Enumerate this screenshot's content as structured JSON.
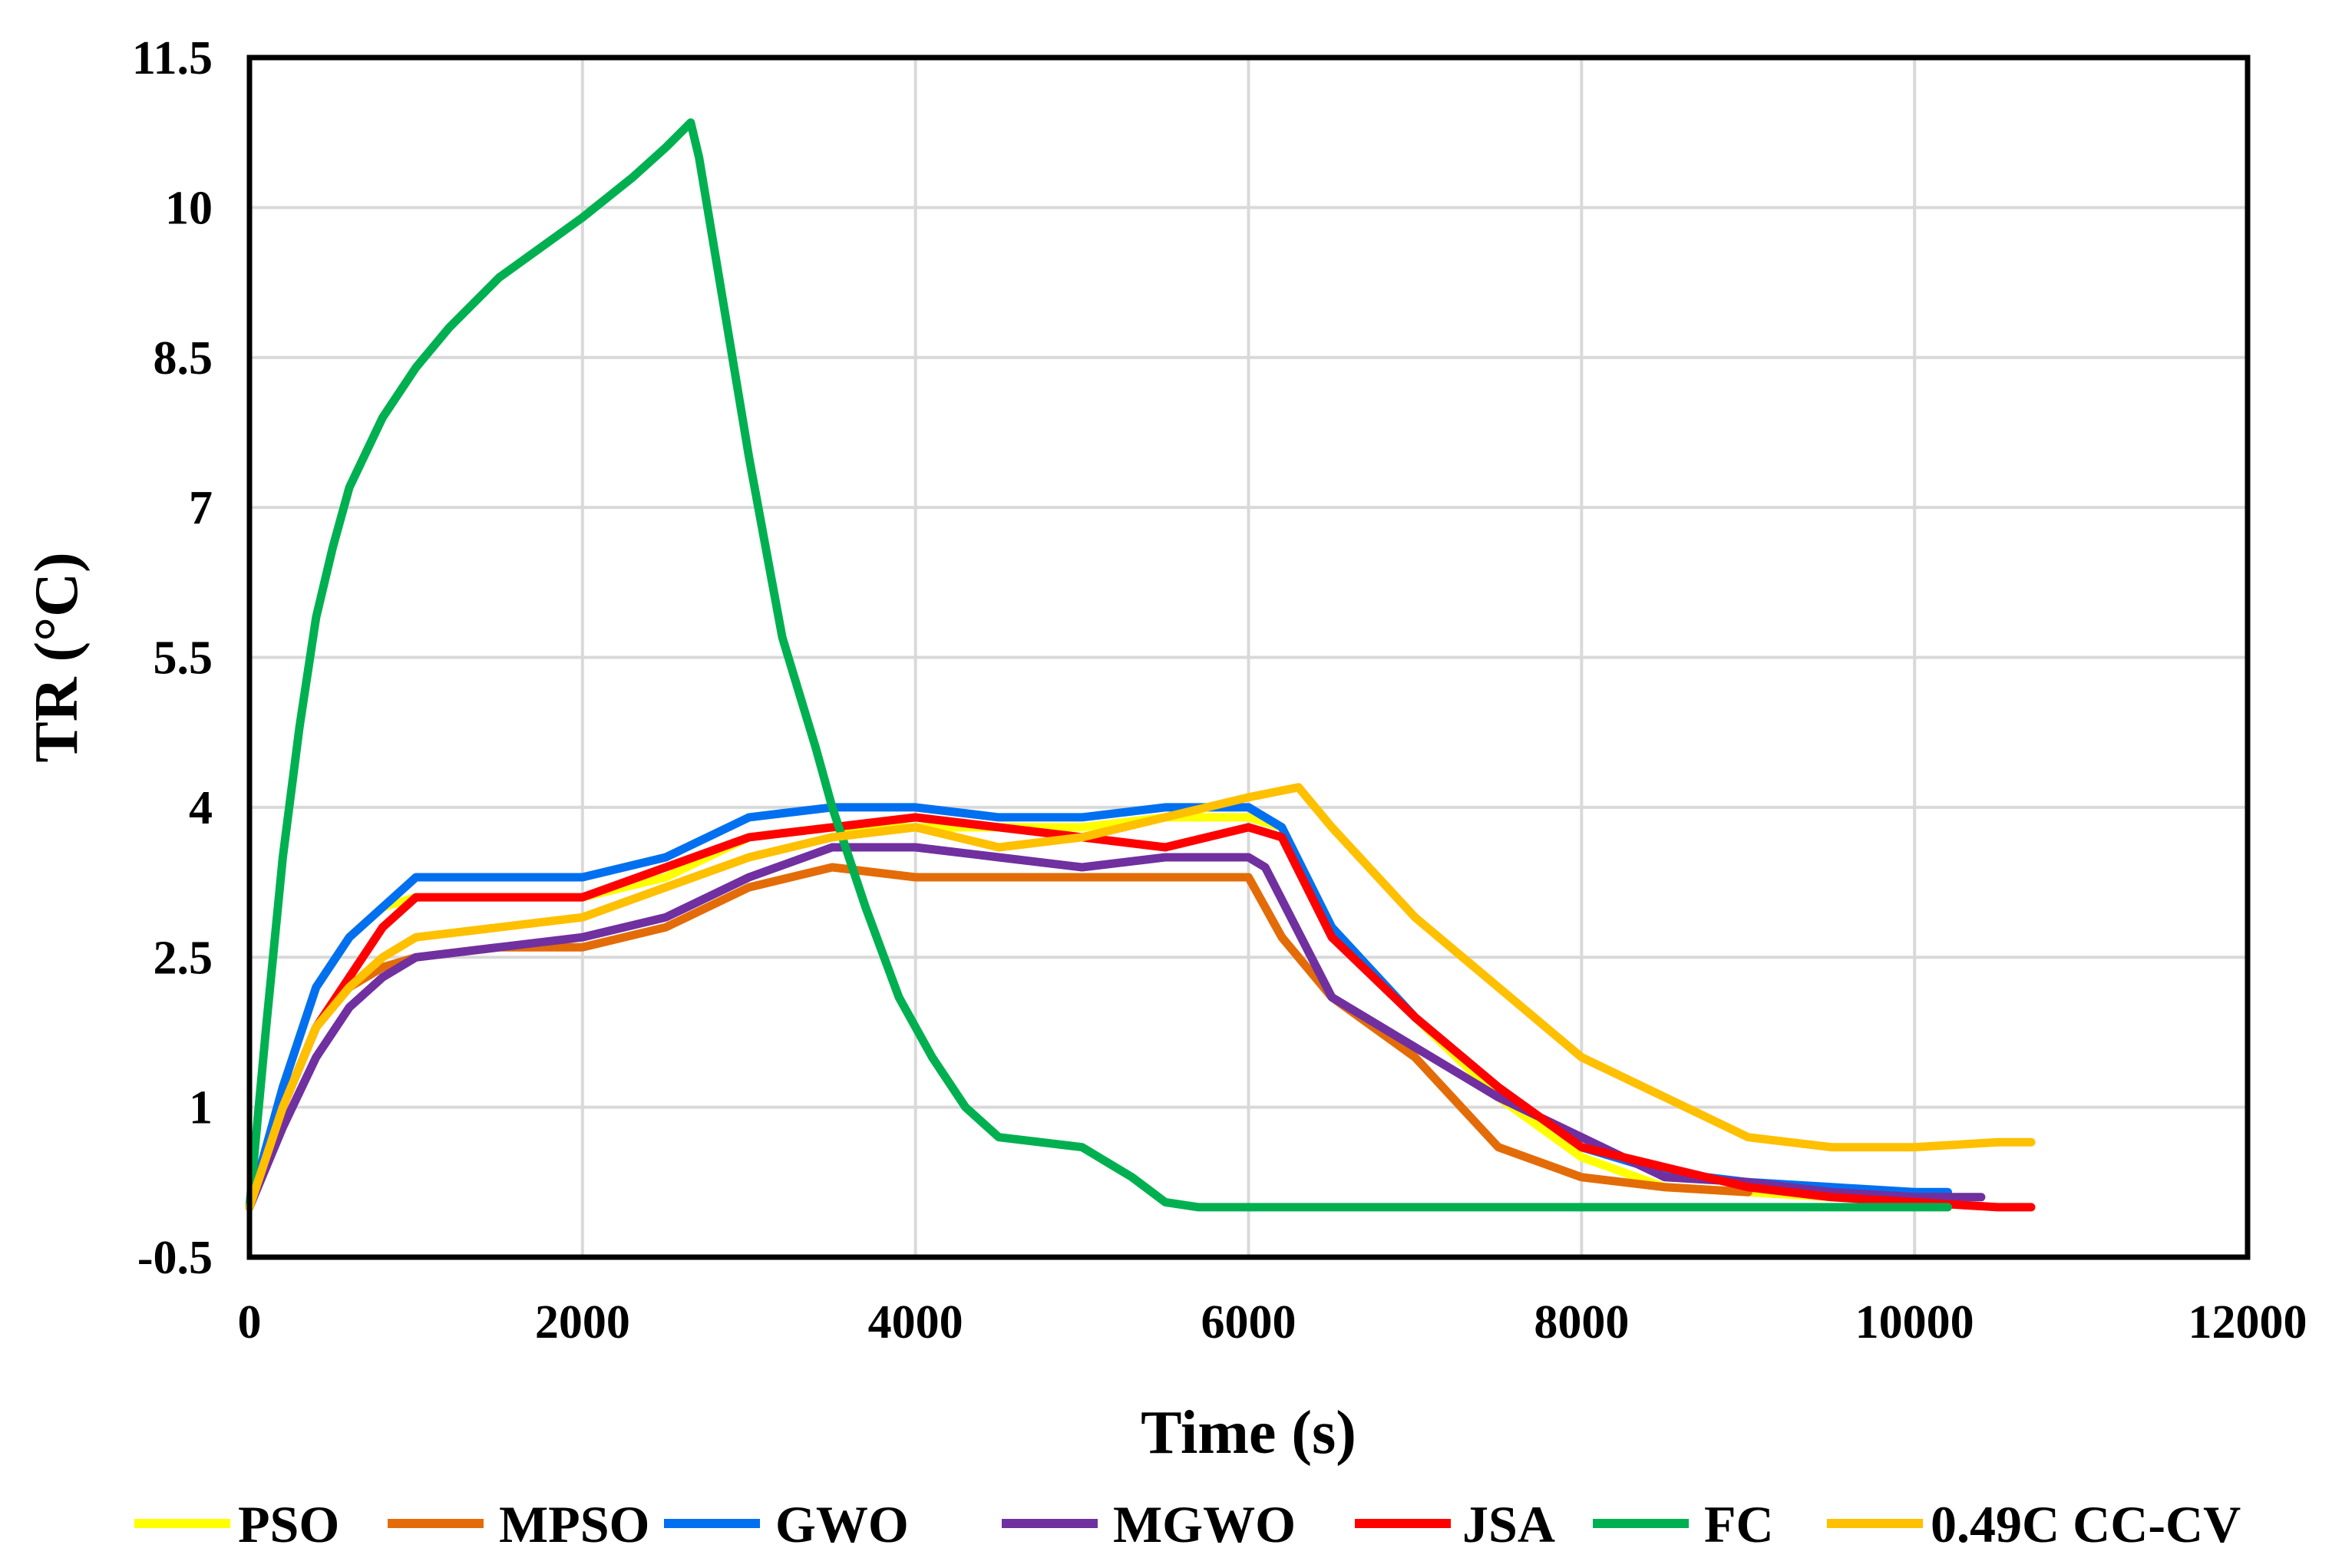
{
  "chart_data": {
    "type": "line",
    "title": "",
    "xlabel": "Time (s)",
    "ylabel": "TR (°C)",
    "xlim": [
      0,
      12000
    ],
    "ylim": [
      -0.5,
      11.5
    ],
    "xticks": [
      0,
      2000,
      4000,
      6000,
      8000,
      10000,
      12000
    ],
    "xtick_labels": [
      "0",
      "2000",
      "4000",
      "6000",
      "8000",
      "10000",
      "12000"
    ],
    "yticks": [
      -0.5,
      1,
      2.5,
      4,
      5.5,
      7,
      8.5,
      10,
      11.5
    ],
    "ytick_labels": [
      "-0.5",
      "1",
      "2.5",
      "4",
      "5.5",
      "7",
      "8.5",
      "10",
      "11.5"
    ],
    "grid": true,
    "legend_position": "bottom",
    "series": [
      {
        "name": "PSO",
        "color": "#ffff00",
        "x": [
          0,
          200,
          400,
          600,
          800,
          1000,
          1500,
          2000,
          2500,
          3000,
          3500,
          4000,
          4500,
          5000,
          5500,
          6000,
          6200,
          6500,
          7000,
          7500,
          8000,
          8500,
          9000,
          9500,
          10000
        ],
        "y": [
          0,
          1.2,
          2.2,
          2.7,
          3.0,
          3.1,
          3.1,
          3.1,
          3.3,
          3.7,
          3.8,
          3.8,
          3.8,
          3.8,
          3.9,
          3.9,
          3.8,
          2.8,
          1.9,
          1.1,
          0.5,
          0.2,
          0.15,
          0.1,
          0.1
        ]
      },
      {
        "name": "MPSO",
        "color": "#e36c09",
        "x": [
          0,
          200,
          400,
          600,
          800,
          1000,
          1500,
          2000,
          2500,
          3000,
          3500,
          4000,
          4500,
          5000,
          5500,
          6000,
          6200,
          6500,
          7000,
          7500,
          8000,
          8500,
          9000
        ],
        "y": [
          0,
          1.0,
          1.8,
          2.2,
          2.4,
          2.5,
          2.6,
          2.6,
          2.8,
          3.2,
          3.4,
          3.3,
          3.3,
          3.3,
          3.3,
          3.3,
          2.7,
          2.1,
          1.5,
          0.6,
          0.3,
          0.2,
          0.15
        ]
      },
      {
        "name": "GWO",
        "color": "#0070f0",
        "x": [
          0,
          200,
          400,
          600,
          800,
          1000,
          1500,
          2000,
          2500,
          3000,
          3500,
          4000,
          4500,
          5000,
          5500,
          6000,
          6200,
          6500,
          7000,
          7500,
          8000,
          8500,
          9000,
          9500,
          10000,
          10200
        ],
        "y": [
          0,
          1.2,
          2.2,
          2.7,
          3.0,
          3.3,
          3.3,
          3.3,
          3.5,
          3.9,
          4.0,
          4.0,
          3.9,
          3.9,
          4.0,
          4.0,
          3.8,
          2.8,
          1.9,
          1.2,
          0.6,
          0.35,
          0.25,
          0.2,
          0.15,
          0.15
        ]
      },
      {
        "name": "MGWO",
        "color": "#7030a0",
        "x": [
          0,
          200,
          400,
          600,
          800,
          1000,
          1500,
          2000,
          2500,
          3000,
          3500,
          4000,
          4500,
          5000,
          5500,
          6000,
          6100,
          6500,
          7000,
          7500,
          8000,
          8500,
          9000,
          9500,
          10000,
          10400
        ],
        "y": [
          0,
          0.8,
          1.5,
          2.0,
          2.3,
          2.5,
          2.6,
          2.7,
          2.9,
          3.3,
          3.6,
          3.6,
          3.5,
          3.4,
          3.5,
          3.5,
          3.4,
          2.1,
          1.6,
          1.1,
          0.7,
          0.3,
          0.25,
          0.15,
          0.1,
          0.1
        ]
      },
      {
        "name": "JSA",
        "color": "#ff0000",
        "x": [
          0,
          200,
          400,
          600,
          800,
          1000,
          1500,
          2000,
          2500,
          3000,
          3500,
          4000,
          4500,
          5000,
          5500,
          6000,
          6200,
          6500,
          7000,
          7500,
          8000,
          8500,
          9000,
          9500,
          10000,
          10500,
          10700
        ],
        "y": [
          0,
          1.0,
          1.8,
          2.3,
          2.8,
          3.1,
          3.1,
          3.1,
          3.4,
          3.7,
          3.8,
          3.9,
          3.8,
          3.7,
          3.6,
          3.8,
          3.7,
          2.7,
          1.9,
          1.2,
          0.6,
          0.4,
          0.2,
          0.1,
          0.05,
          0.0,
          0.0
        ]
      },
      {
        "name": "FC",
        "color": "#00b050",
        "x": [
          0,
          100,
          200,
          300,
          400,
          500,
          600,
          800,
          1000,
          1200,
          1500,
          2000,
          2300,
          2500,
          2650,
          2700,
          2800,
          3000,
          3200,
          3400,
          3500,
          3700,
          3900,
          4100,
          4300,
          4500,
          5000,
          5300,
          5500,
          5700,
          6000,
          7000,
          8000,
          9000,
          10000,
          10200
        ],
        "y": [
          0,
          1.8,
          3.5,
          4.8,
          5.9,
          6.6,
          7.2,
          7.9,
          8.4,
          8.8,
          9.3,
          9.9,
          10.3,
          10.6,
          10.85,
          10.5,
          9.5,
          7.5,
          5.7,
          4.6,
          4.0,
          3.0,
          2.1,
          1.5,
          1.0,
          0.7,
          0.6,
          0.3,
          0.05,
          0.0,
          0.0,
          0.0,
          0.0,
          0.0,
          0.0,
          0.0
        ]
      },
      {
        "name": "0.49C CC-CV",
        "color": "#ffc000",
        "x": [
          0,
          200,
          400,
          600,
          800,
          1000,
          1500,
          2000,
          2500,
          3000,
          3500,
          4000,
          4500,
          5000,
          5500,
          6000,
          6300,
          6500,
          7000,
          7500,
          8000,
          8500,
          9000,
          9500,
          10000,
          10500,
          10700
        ],
        "y": [
          0,
          1.0,
          1.8,
          2.2,
          2.5,
          2.7,
          2.8,
          2.9,
          3.2,
          3.5,
          3.7,
          3.8,
          3.6,
          3.7,
          3.9,
          4.1,
          4.2,
          3.8,
          2.9,
          2.2,
          1.5,
          1.1,
          0.7,
          0.6,
          0.6,
          0.65,
          0.65
        ]
      }
    ]
  }
}
